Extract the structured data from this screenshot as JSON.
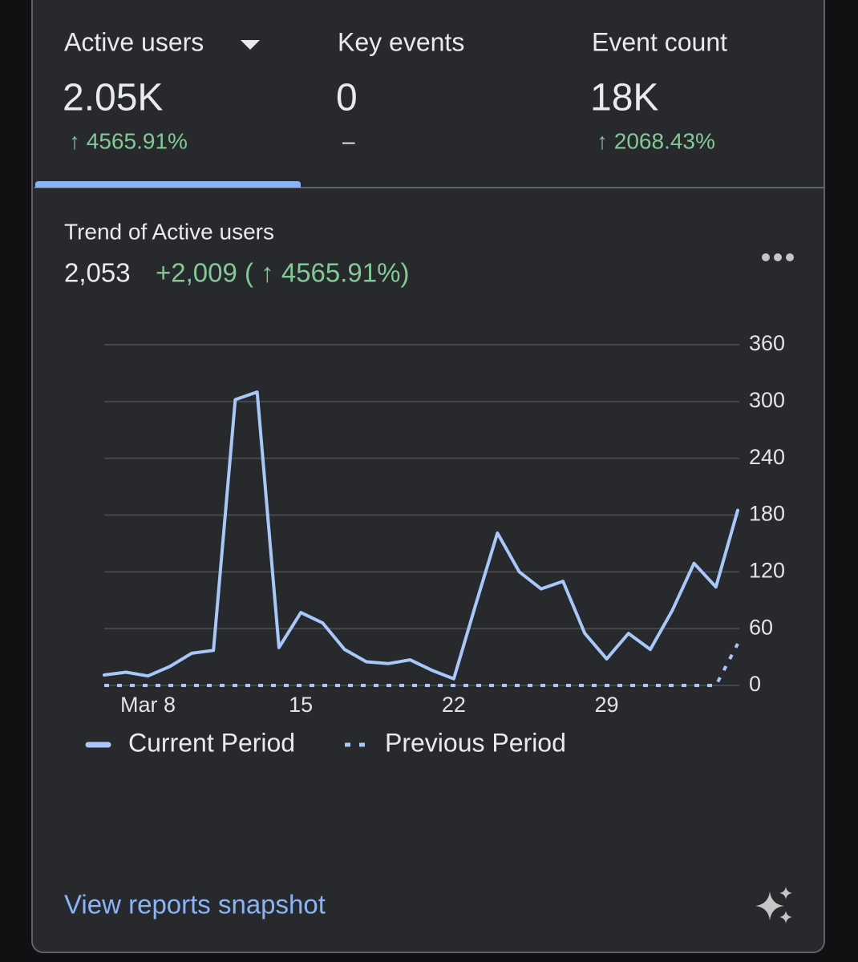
{
  "tabs": [
    {
      "label": "Active users",
      "value": "2.05K",
      "change": "↑ 4565.91%"
    },
    {
      "label": "Key events",
      "value": "0",
      "change": "–"
    },
    {
      "label": "Event count",
      "value": "18K",
      "change": "↑ 2068.43%"
    }
  ],
  "trend": {
    "title": "Trend of Active users",
    "total": "2,053",
    "change": "+2,009 ( ↑ 4565.91%)"
  },
  "chart_data": {
    "type": "line",
    "categories": [
      null,
      null,
      "Mar 8",
      null,
      null,
      null,
      null,
      null,
      null,
      "15",
      null,
      null,
      null,
      null,
      null,
      null,
      "22",
      null,
      null,
      null,
      null,
      null,
      null,
      "29",
      null,
      null,
      null,
      null,
      null,
      null
    ],
    "series": [
      {
        "name": "Current Period",
        "color": "#a8c7fa",
        "line_style": "solid",
        "values": [
          11,
          14,
          10,
          20,
          34,
          37,
          302,
          310,
          40,
          77,
          66,
          38,
          25,
          23,
          27,
          16,
          7,
          85,
          161,
          120,
          102,
          110,
          55,
          28,
          55,
          38,
          79,
          129,
          104,
          185
        ]
      },
      {
        "name": "Previous Period",
        "color": "#a8c7fa",
        "line_style": "dotted",
        "values": [
          0,
          0,
          0,
          0,
          0,
          0,
          0,
          0,
          0,
          0,
          0,
          0,
          0,
          0,
          0,
          0,
          0,
          0,
          0,
          0,
          0,
          0,
          0,
          0,
          0,
          0,
          0,
          0,
          0,
          44
        ]
      }
    ],
    "ylim": [
      0,
      360
    ],
    "yticks": [
      0,
      60,
      120,
      180,
      240,
      300,
      360
    ],
    "y_axis_position": "right",
    "grid": true
  },
  "footer": {
    "link": "View reports snapshot"
  }
}
